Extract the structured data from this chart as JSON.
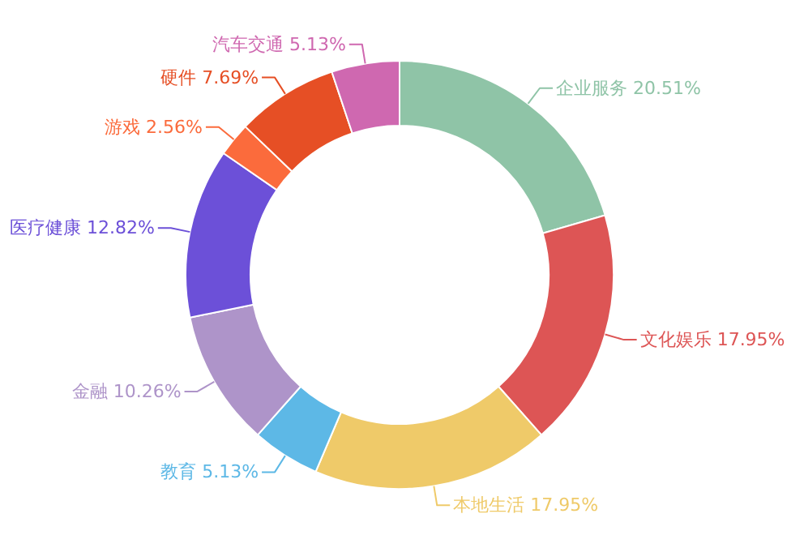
{
  "chart_data": {
    "type": "donut",
    "categories": [
      "企业服务",
      "文化娱乐",
      "本地生活",
      "教育",
      "金融",
      "医疗健康",
      "游戏",
      "硬件",
      "汽车交通"
    ],
    "values": [
      20.51,
      17.95,
      17.95,
      5.13,
      10.26,
      12.82,
      2.56,
      7.69,
      5.13
    ],
    "colors": [
      "#8fc4a7",
      "#dd5555",
      "#efca69",
      "#5db8e6",
      "#ae94c9",
      "#6c50d8",
      "#fb6b3c",
      "#e64f25",
      "#cf68b0"
    ],
    "value_labels": [
      "20.51%",
      "17.95%",
      "17.95%",
      "5.13%",
      "10.26%",
      "12.82%",
      "2.56%",
      "7.69%",
      "5.13%"
    ]
  }
}
